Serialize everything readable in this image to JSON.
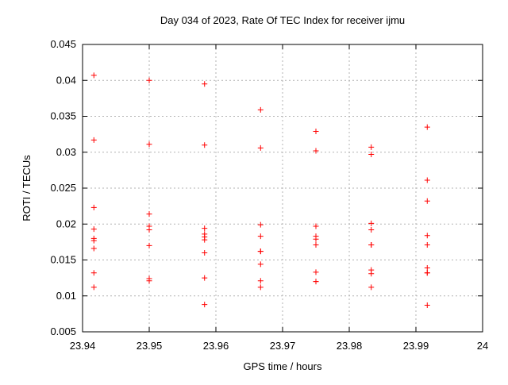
{
  "window": {
    "title": "Day 034 of 2023, Rate Of TEC Index for receiver ijmu"
  },
  "colors": {
    "marker": "#ff0000",
    "grid": "#b3b3b3",
    "axis": "#000000",
    "background": "#ffffff",
    "text": "#000000"
  },
  "chart_data": {
    "type": "scatter",
    "title": "Day 034 of 2023, Rate Of TEC Index for receiver ijmu",
    "xlabel": "GPS time / hours",
    "ylabel": "ROTI / TECUs",
    "xlim": [
      23.94,
      24
    ],
    "ylim": [
      0.005,
      0.045
    ],
    "grid": "dashed",
    "legend": "none",
    "marker": {
      "shape": "plus",
      "color": "#ff0000",
      "size": 7
    },
    "xticks": {
      "values": [
        23.94,
        23.95,
        23.96,
        23.97,
        23.98,
        23.99,
        24
      ],
      "labels": [
        "23.94",
        "23.95",
        "23.96",
        "23.97",
        "23.98",
        "23.99",
        "24"
      ]
    },
    "yticks": {
      "values": [
        0.005,
        0.01,
        0.015,
        0.02,
        0.025,
        0.03,
        0.035,
        0.04,
        0.045
      ],
      "labels": [
        "0.005",
        "0.01",
        "0.015",
        "0.02",
        "0.025",
        "0.03",
        "0.035",
        "0.04",
        "0.045"
      ]
    },
    "series": [
      {
        "name": "ROTI",
        "points": [
          [
            23.9417,
            0.0407
          ],
          [
            23.9417,
            0.0317
          ],
          [
            23.9417,
            0.0223
          ],
          [
            23.9417,
            0.0193
          ],
          [
            23.9417,
            0.018
          ],
          [
            23.9417,
            0.0177
          ],
          [
            23.9417,
            0.0166
          ],
          [
            23.9417,
            0.0132
          ],
          [
            23.9417,
            0.0112
          ],
          [
            23.95,
            0.04
          ],
          [
            23.95,
            0.0311
          ],
          [
            23.95,
            0.0214
          ],
          [
            23.95,
            0.0197
          ],
          [
            23.95,
            0.0192
          ],
          [
            23.95,
            0.017
          ],
          [
            23.95,
            0.0124
          ],
          [
            23.95,
            0.0121
          ],
          [
            23.9583,
            0.0395
          ],
          [
            23.9583,
            0.031
          ],
          [
            23.9583,
            0.0194
          ],
          [
            23.9583,
            0.0186
          ],
          [
            23.9583,
            0.0182
          ],
          [
            23.9583,
            0.0178
          ],
          [
            23.9583,
            0.016
          ],
          [
            23.9583,
            0.0125
          ],
          [
            23.9583,
            0.0088
          ],
          [
            23.9667,
            0.0359
          ],
          [
            23.9667,
            0.0306
          ],
          [
            23.9667,
            0.0199
          ],
          [
            23.9667,
            0.0183
          ],
          [
            23.9667,
            0.0162
          ],
          [
            23.9667,
            0.0162
          ],
          [
            23.9667,
            0.0144
          ],
          [
            23.9667,
            0.0121
          ],
          [
            23.9667,
            0.0112
          ],
          [
            23.975,
            0.0329
          ],
          [
            23.975,
            0.0302
          ],
          [
            23.975,
            0.0197
          ],
          [
            23.975,
            0.0183
          ],
          [
            23.975,
            0.0179
          ],
          [
            23.975,
            0.0171
          ],
          [
            23.975,
            0.0133
          ],
          [
            23.975,
            0.012
          ],
          [
            23.975,
            0.012
          ],
          [
            23.9833,
            0.0307
          ],
          [
            23.9833,
            0.0297
          ],
          [
            23.9833,
            0.0201
          ],
          [
            23.9833,
            0.0192
          ],
          [
            23.9833,
            0.0171
          ],
          [
            23.9833,
            0.0171
          ],
          [
            23.9833,
            0.0136
          ],
          [
            23.9833,
            0.0131
          ],
          [
            23.9833,
            0.0112
          ],
          [
            23.9917,
            0.0335
          ],
          [
            23.9917,
            0.0261
          ],
          [
            23.9917,
            0.0232
          ],
          [
            23.9917,
            0.0184
          ],
          [
            23.9917,
            0.0171
          ],
          [
            23.9917,
            0.0139
          ],
          [
            23.9917,
            0.0132
          ],
          [
            23.9917,
            0.0132
          ],
          [
            23.9917,
            0.0087
          ]
        ]
      }
    ]
  }
}
